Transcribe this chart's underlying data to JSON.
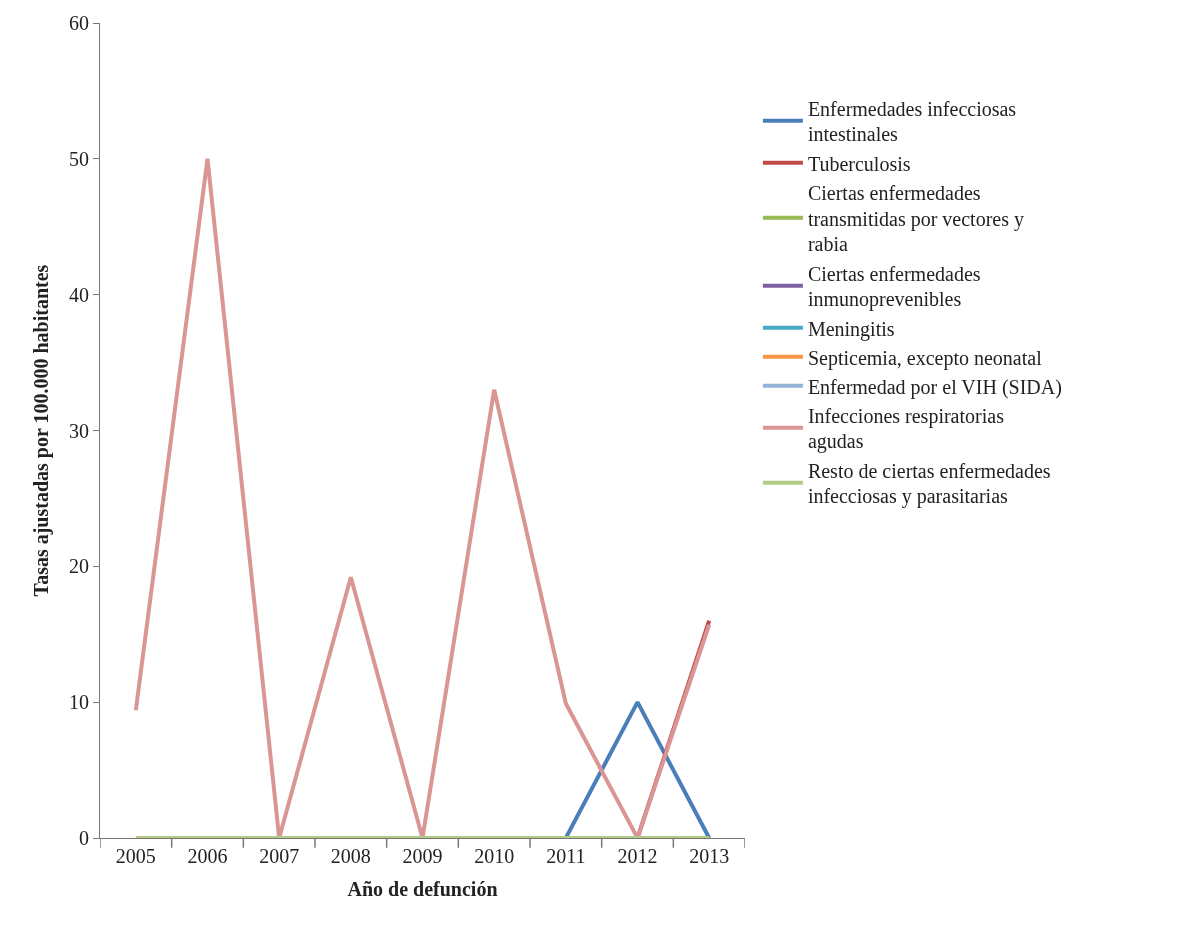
{
  "chart_data": {
    "type": "line",
    "xlabel": "Año de defunción",
    "ylabel": "Tasas ajustadas por 100.000 habitantes",
    "categories": [
      "2005",
      "2006",
      "2007",
      "2008",
      "2009",
      "2010",
      "2011",
      "2012",
      "2013"
    ],
    "series": [
      {
        "name": "Enfermedades infecciosas intestinales",
        "color": "#4a7ebb",
        "values": [
          null,
          null,
          null,
          null,
          null,
          null,
          0,
          10,
          0
        ]
      },
      {
        "name": "Tuberculosis",
        "color": "#be4b48",
        "values": [
          null,
          null,
          null,
          null,
          null,
          null,
          null,
          0,
          16
        ]
      },
      {
        "name": "Ciertas enfermedades transmitidas por vectores y rabia",
        "color": "#98b954",
        "values": [
          null,
          null,
          null,
          null,
          null,
          null,
          null,
          null,
          null
        ]
      },
      {
        "name": "Ciertas enfermedades inmunoprevenibles",
        "color": "#7d60a0",
        "values": [
          null,
          null,
          null,
          null,
          null,
          null,
          null,
          null,
          null
        ]
      },
      {
        "name": "Meningitis",
        "color": "#46aac5",
        "values": [
          null,
          null,
          null,
          null,
          null,
          null,
          null,
          null,
          null
        ]
      },
      {
        "name": "Septicemia, excepto neonatal",
        "color": "#f79646",
        "values": [
          null,
          null,
          null,
          null,
          null,
          null,
          null,
          null,
          null
        ]
      },
      {
        "name": "Enfermedad por el VIH (SIDA)",
        "color": "#95b3d7",
        "values": [
          null,
          null,
          null,
          null,
          null,
          null,
          null,
          null,
          null
        ]
      },
      {
        "name": "Infecciones respiratorias agudas",
        "color": "#d99694",
        "values": [
          9.4,
          50,
          0,
          19.2,
          0,
          33,
          9.9,
          0,
          15.7
        ]
      },
      {
        "name": "Resto de ciertas enfermedades infecciosas y parasitarias",
        "color": "#b3cc85",
        "values": [
          0,
          0,
          0,
          0,
          0,
          0,
          0,
          0,
          0
        ]
      }
    ],
    "ylim": [
      0,
      60
    ],
    "yticks": [
      0,
      10,
      20,
      30,
      40,
      50,
      60
    ],
    "legend": "right",
    "marker": "none",
    "line_style": "solid"
  }
}
